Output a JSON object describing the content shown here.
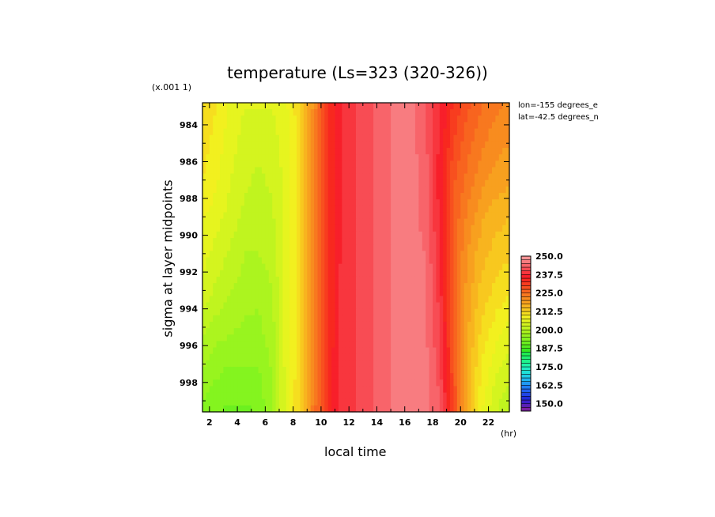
{
  "chart_data": {
    "type": "heatmap",
    "title": "temperature (Ls=323 (320-326))",
    "xlabel": "local time",
    "ylabel": "sigma at layer midpoints",
    "x_unit": "(hr)",
    "y_scale_note": "(x.001 1)",
    "annotations": [
      "lon=-155 degrees_e",
      "lat=-42.5 degrees_n"
    ],
    "x_ticks": [
      2,
      4,
      6,
      8,
      10,
      12,
      14,
      16,
      18,
      20,
      22
    ],
    "xlim": [
      1.5,
      23.5
    ],
    "y_ticks": [
      984,
      986,
      988,
      990,
      992,
      994,
      996,
      998
    ],
    "ylim": [
      982.8,
      999.6
    ],
    "y_inverted": true,
    "x": [
      1.5,
      2.5,
      3.5,
      4.5,
      5.5,
      6.5,
      7.5,
      8.5,
      9.5,
      10.5,
      11.5,
      12.5,
      13.5,
      14.5,
      15.5,
      16.5,
      17.5,
      18.5,
      19.5,
      20.5,
      21.5,
      22.5,
      23.5
    ],
    "y": [
      983,
      985,
      987,
      989,
      991,
      993,
      995,
      997,
      999.5
    ],
    "z": [
      [
        212,
        210,
        207,
        205,
        205,
        205,
        207,
        212,
        221,
        232,
        238,
        240,
        242,
        244,
        246,
        246,
        243,
        238,
        232,
        228,
        225,
        223,
        222
      ],
      [
        211,
        209,
        206,
        204,
        203,
        204,
        206,
        212,
        222,
        232,
        238,
        240,
        242,
        244,
        246,
        246,
        243,
        237,
        230,
        226,
        223,
        221,
        220
      ],
      [
        210,
        208,
        205,
        203,
        202,
        203,
        206,
        212,
        222,
        232,
        238,
        240,
        242,
        244,
        246,
        246,
        244,
        236,
        228,
        224,
        221,
        219,
        218
      ],
      [
        208,
        206,
        204,
        202,
        201,
        202,
        206,
        212,
        222,
        232,
        238,
        240,
        242,
        244,
        246,
        246,
        244,
        237,
        227,
        222,
        218,
        216,
        215
      ],
      [
        206,
        204,
        202,
        200,
        200,
        201,
        206,
        212,
        222,
        232,
        238,
        240,
        242,
        244,
        246,
        246,
        245,
        238,
        226,
        220,
        216,
        214,
        213
      ],
      [
        204,
        202,
        200,
        199,
        198,
        200,
        206,
        212,
        222,
        232,
        239,
        240,
        242,
        244,
        246,
        246,
        245,
        239,
        226,
        219,
        214,
        212,
        210
      ],
      [
        201,
        199,
        198,
        197,
        197,
        199,
        206,
        212,
        223,
        232,
        239,
        240,
        242,
        244,
        246,
        246,
        245,
        240,
        227,
        218,
        212,
        209,
        207
      ],
      [
        198,
        196,
        195,
        195,
        195,
        198,
        206,
        212,
        223,
        233,
        239,
        240,
        242,
        244,
        246,
        246,
        246,
        241,
        228,
        217,
        210,
        206,
        204
      ],
      [
        194,
        193,
        192,
        192,
        193,
        197,
        206,
        213,
        224,
        233,
        239,
        240,
        242,
        244,
        246,
        246,
        246,
        243,
        230,
        216,
        208,
        203,
        200
      ]
    ],
    "levels": [
      145,
      147.5,
      150,
      152.5,
      155,
      157.5,
      160,
      162.5,
      165,
      167.5,
      170,
      172.5,
      175,
      177.5,
      180,
      182.5,
      185,
      187.5,
      190,
      192.5,
      195,
      197.5,
      200,
      202.5,
      205,
      207.5,
      210,
      212.5,
      215,
      217.5,
      220,
      222.5,
      225,
      227.5,
      230,
      232.5,
      235,
      237.5,
      240,
      242.5,
      245,
      247.5,
      250
    ],
    "colorbar_labels": [
      "250.0",
      "237.5",
      "225.0",
      "212.5",
      "200.0",
      "187.5",
      "175.0",
      "162.5",
      "150.0"
    ],
    "colormap": [
      "#7a1fa0",
      "#5a1fb4",
      "#3a1fc8",
      "#1f2ad8",
      "#1f45e6",
      "#1f60ee",
      "#1f7cf2",
      "#1f98f2",
      "#1fb4ee",
      "#1fcce6",
      "#1fe0d8",
      "#1fecc4",
      "#1ff2a8",
      "#1ff28c",
      "#1ff070",
      "#1fec52",
      "#34ea1f",
      "#52ec1f",
      "#6cf01f",
      "#84f41f",
      "#98f41f",
      "#acf41f",
      "#c0f41f",
      "#d4f41f",
      "#e6f41f",
      "#f2f01f",
      "#f6de1f",
      "#f8c81f",
      "#f8b41f",
      "#f8a01f",
      "#f88c1f",
      "#f8781f",
      "#f8641f",
      "#f8501f",
      "#f83c1f",
      "#f8281f",
      "#f81f2a",
      "#f8363e",
      "#f84c54",
      "#f8646a",
      "#f87c80",
      "#f89496"
    ]
  }
}
